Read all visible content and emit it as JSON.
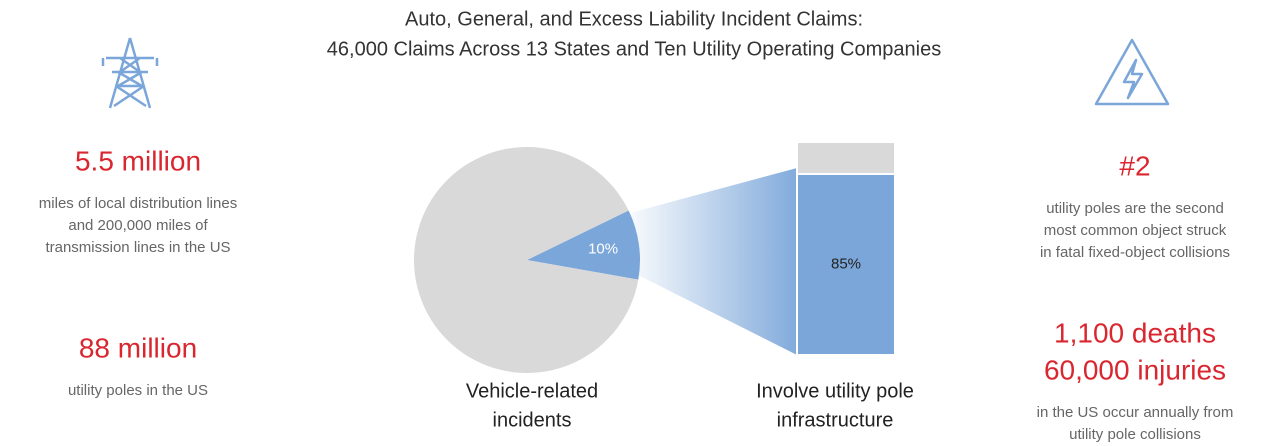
{
  "chart_data": {
    "type": "pie-of-bar",
    "title": [
      "Auto, General, and Excess Liability Incident Claims:",
      "46,000 Claims Across 13 States and Ten Utility Operating Companies"
    ],
    "pie": {
      "caption": [
        "Vehicle-related",
        "incidents"
      ],
      "values": [
        10,
        90
      ],
      "value_labels": [
        "10%",
        null
      ],
      "colors": [
        "#7ba6d9",
        "#d9d9d9"
      ]
    },
    "bar": {
      "caption": [
        "Involve utility pole",
        "infrastructure"
      ],
      "values": [
        85,
        15
      ],
      "value_labels": [
        "85%",
        null
      ],
      "colors": [
        "#7ba6d9",
        "#d9d9d9"
      ]
    }
  },
  "stats": {
    "left": [
      {
        "headline": [
          "5.5 million"
        ],
        "text": [
          "miles of local distribution lines",
          "and 200,000 miles of",
          "transmission lines in the US"
        ]
      },
      {
        "headline": [
          "88 million"
        ],
        "text": [
          "utility poles in the US"
        ]
      }
    ],
    "right": [
      {
        "headline": [
          "#2"
        ],
        "text": [
          "utility poles are the second",
          "most common object struck",
          "in fatal fixed-object collisions"
        ]
      },
      {
        "headline": [
          "1,100 deaths",
          "60,000 injuries"
        ],
        "text": [
          "in the US occur annually from",
          "utility pole collisions"
        ]
      }
    ]
  }
}
